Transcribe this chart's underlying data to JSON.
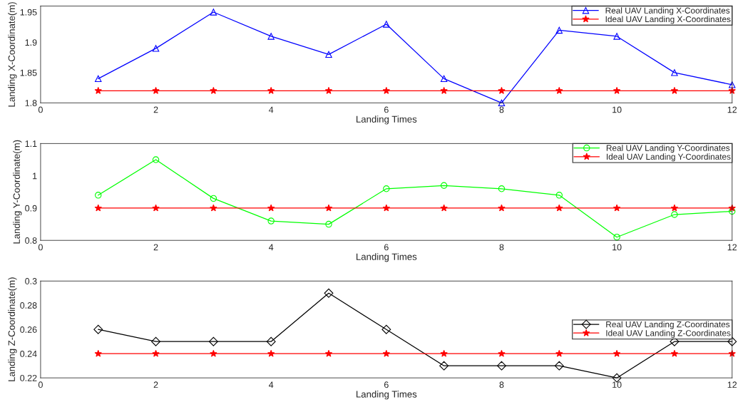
{
  "chart_data": [
    {
      "type": "line",
      "xlabel": "Landing Times",
      "ylabel": "Landing X-Coordinate(m)",
      "x": [
        1,
        2,
        3,
        4,
        5,
        6,
        7,
        8,
        9,
        10,
        11,
        12
      ],
      "xlim": [
        0,
        12
      ],
      "xticks": [
        0,
        2,
        4,
        6,
        8,
        10,
        12
      ],
      "ylim": [
        1.8,
        1.96
      ],
      "yticks": [
        1.8,
        1.85,
        1.9,
        1.95
      ],
      "legend": "top right",
      "grid": false,
      "series": [
        {
          "name": "Real UAV Landing X-Coordinates",
          "color": "#0000ff",
          "marker": "triangle",
          "values": [
            1.84,
            1.89,
            1.95,
            1.91,
            1.88,
            1.93,
            1.84,
            1.8,
            1.92,
            1.91,
            1.85,
            1.83
          ]
        },
        {
          "name": "Ideal UAV Landing X-Coordinates",
          "color": "#ff0000",
          "marker": "star",
          "values": [
            1.82,
            1.82,
            1.82,
            1.82,
            1.82,
            1.82,
            1.82,
            1.82,
            1.82,
            1.82,
            1.82,
            1.82
          ]
        }
      ]
    },
    {
      "type": "line",
      "xlabel": "Landing Times",
      "ylabel": "Landing Y-Coordinate(m)",
      "x": [
        1,
        2,
        3,
        4,
        5,
        6,
        7,
        8,
        9,
        10,
        11,
        12
      ],
      "xlim": [
        0,
        12
      ],
      "xticks": [
        0,
        2,
        4,
        6,
        8,
        10,
        12
      ],
      "ylim": [
        0.8,
        1.1
      ],
      "yticks": [
        0.8,
        0.9,
        1,
        1.1
      ],
      "legend": "top right",
      "grid": false,
      "series": [
        {
          "name": "Real UAV Landing Y-Coordinates",
          "color": "#00ff00",
          "marker": "circle",
          "values": [
            0.94,
            1.05,
            0.93,
            0.86,
            0.85,
            0.96,
            0.97,
            0.96,
            0.94,
            0.81,
            0.88,
            0.89
          ]
        },
        {
          "name": "Ideal UAV Landing Y-Coordinates",
          "color": "#ff0000",
          "marker": "star",
          "values": [
            0.9,
            0.9,
            0.9,
            0.9,
            0.9,
            0.9,
            0.9,
            0.9,
            0.9,
            0.9,
            0.9,
            0.9
          ]
        }
      ]
    },
    {
      "type": "line",
      "xlabel": "Landing Times",
      "ylabel": "Landing Z-Coordinate(m)",
      "x": [
        1,
        2,
        3,
        4,
        5,
        6,
        7,
        8,
        9,
        10,
        11,
        12
      ],
      "xlim": [
        0,
        12
      ],
      "xticks": [
        0,
        2,
        4,
        6,
        8,
        10,
        12
      ],
      "ylim": [
        0.22,
        0.3
      ],
      "yticks": [
        0.22,
        0.24,
        0.26,
        0.28,
        0.3
      ],
      "legend": "right",
      "grid": false,
      "series": [
        {
          "name": "Real UAV Landing Z-Coordinates",
          "color": "#000000",
          "marker": "diamond",
          "values": [
            0.26,
            0.25,
            0.25,
            0.25,
            0.29,
            0.26,
            0.23,
            0.23,
            0.23,
            0.22,
            0.25,
            0.25
          ]
        },
        {
          "name": "Ideal UAV Landing Z-Coordinates",
          "color": "#ff0000",
          "marker": "star",
          "values": [
            0.24,
            0.24,
            0.24,
            0.24,
            0.24,
            0.24,
            0.24,
            0.24,
            0.24,
            0.24,
            0.24,
            0.24
          ]
        }
      ]
    }
  ]
}
